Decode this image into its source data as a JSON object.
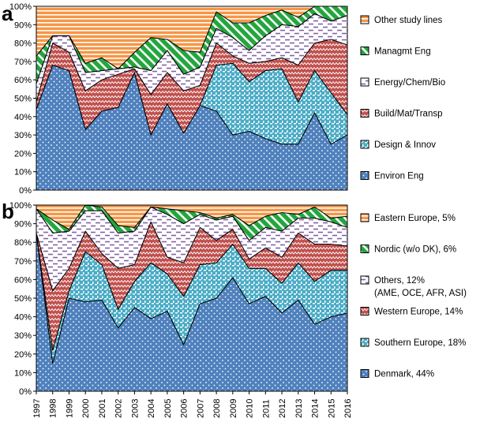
{
  "chart_data": [
    {
      "panel": "a",
      "type": "area",
      "stacked": true,
      "normalized": true,
      "x": [
        1997,
        1998,
        1999,
        2000,
        2001,
        2002,
        2003,
        2004,
        2005,
        2006,
        2007,
        2008,
        2009,
        2010,
        2011,
        2012,
        2013,
        2014,
        2015,
        2016
      ],
      "ylim": [
        0,
        100
      ],
      "yticks": [
        "0%",
        "10%",
        "20%",
        "30%",
        "40%",
        "50%",
        "60%",
        "70%",
        "80%",
        "90%",
        "100%"
      ],
      "series": [
        {
          "name": "Environ Eng",
          "color": "#4F81BD",
          "pattern": "dots",
          "values": [
            44,
            68,
            65,
            33,
            43,
            45,
            64,
            30,
            47,
            31,
            46,
            43,
            30,
            32,
            28,
            25,
            25,
            42,
            25,
            30
          ]
        },
        {
          "name": "Design & Innov",
          "color": "#4BACC6",
          "pattern": "weave",
          "values": [
            0,
            0,
            0,
            0,
            0,
            0,
            0,
            0,
            0,
            0,
            0,
            25,
            39,
            27,
            37,
            41,
            23,
            23,
            28,
            11
          ]
        },
        {
          "name": "Build/Mat/Transp",
          "color": "#C0504D",
          "pattern": "zigzag",
          "values": [
            4,
            12,
            10,
            21,
            17,
            18,
            2,
            22,
            17,
            23,
            11,
            12,
            4,
            10,
            5,
            6,
            20,
            15,
            29,
            38
          ]
        },
        {
          "name": "Energy/Chem/Bio",
          "color": "#8064A2",
          "pattern": "dash",
          "values": [
            10,
            4,
            9,
            10,
            5,
            3,
            1,
            13,
            12,
            9,
            10,
            8,
            10,
            7,
            14,
            18,
            21,
            16,
            10,
            16
          ]
        },
        {
          "name": "Managmt Eng",
          "color": "#23A63D",
          "pattern": "diag",
          "values": [
            15,
            0,
            0,
            5,
            7,
            0,
            8,
            18,
            6,
            13,
            8,
            9,
            8,
            15,
            11,
            8,
            5,
            4,
            8,
            5
          ]
        },
        {
          "name": "Other study lines",
          "color": "#F79646",
          "pattern": "hlines",
          "values": [
            27,
            16,
            16,
            31,
            28,
            34,
            25,
            17,
            18,
            24,
            25,
            3,
            9,
            9,
            5,
            2,
            6,
            0,
            0,
            0
          ]
        }
      ]
    },
    {
      "panel": "b",
      "type": "area",
      "stacked": true,
      "normalized": true,
      "x": [
        1997,
        1998,
        1999,
        2000,
        2001,
        2002,
        2003,
        2004,
        2005,
        2006,
        2007,
        2008,
        2009,
        2010,
        2011,
        2012,
        2013,
        2014,
        2015,
        2016
      ],
      "ylim": [
        0,
        100
      ],
      "yticks": [
        "0%",
        "10%",
        "20%",
        "30%",
        "40%",
        "50%",
        "60%",
        "70%",
        "80%",
        "90%",
        "100%"
      ],
      "xlabels": [
        "1997",
        "1998",
        "1999",
        "2000",
        "2001",
        "2002",
        "2003",
        "2004",
        "2005",
        "2006",
        "2007",
        "2008",
        "2009",
        "2010",
        "2011",
        "2012",
        "2013",
        "2014",
        "2015",
        "2016"
      ],
      "series": [
        {
          "name": "Denmark, 44%",
          "color": "#4F81BD",
          "pattern": "dots",
          "values": [
            85,
            15,
            50,
            48,
            49,
            34,
            45,
            39,
            43,
            25,
            47,
            50,
            61,
            47,
            51,
            42,
            49,
            36,
            40,
            42
          ]
        },
        {
          "name": "Southern Europe, 18%",
          "color": "#4BACC6",
          "pattern": "weave",
          "values": [
            0,
            7,
            4,
            27,
            19,
            10,
            14,
            30,
            20,
            26,
            21,
            19,
            18,
            19,
            15,
            16,
            20,
            23,
            25,
            23
          ]
        },
        {
          "name": "Western Europe, 14%",
          "color": "#C0504D",
          "pattern": "zigzag",
          "values": [
            0,
            32,
            12,
            11,
            6,
            22,
            9,
            22,
            9,
            18,
            20,
            12,
            8,
            5,
            11,
            14,
            16,
            20,
            14,
            13
          ]
        },
        {
          "name": "Others, 12%",
          "subtitle": "(AME, OCE, AFR, ASI)",
          "color": "#8064A2",
          "pattern": "dash",
          "values": [
            13,
            31,
            20,
            11,
            23,
            19,
            18,
            8,
            23,
            21,
            7,
            11,
            7,
            10,
            11,
            14,
            8,
            14,
            12,
            10
          ]
        },
        {
          "name": "Nordic (w/o DK), 6%",
          "color": "#23A63D",
          "pattern": "diag",
          "values": [
            0,
            7,
            1,
            3,
            2,
            4,
            2,
            0,
            3,
            7,
            1,
            1,
            1,
            8,
            6,
            10,
            2,
            6,
            2,
            6
          ]
        },
        {
          "name": "Eastern Europe, 5%",
          "color": "#F79646",
          "pattern": "hlines",
          "values": [
            2,
            8,
            13,
            0,
            1,
            11,
            12,
            1,
            2,
            3,
            4,
            7,
            5,
            11,
            6,
            4,
            5,
            1,
            7,
            6
          ]
        }
      ]
    }
  ],
  "panel_labels": {
    "a": "a",
    "b": "b"
  }
}
